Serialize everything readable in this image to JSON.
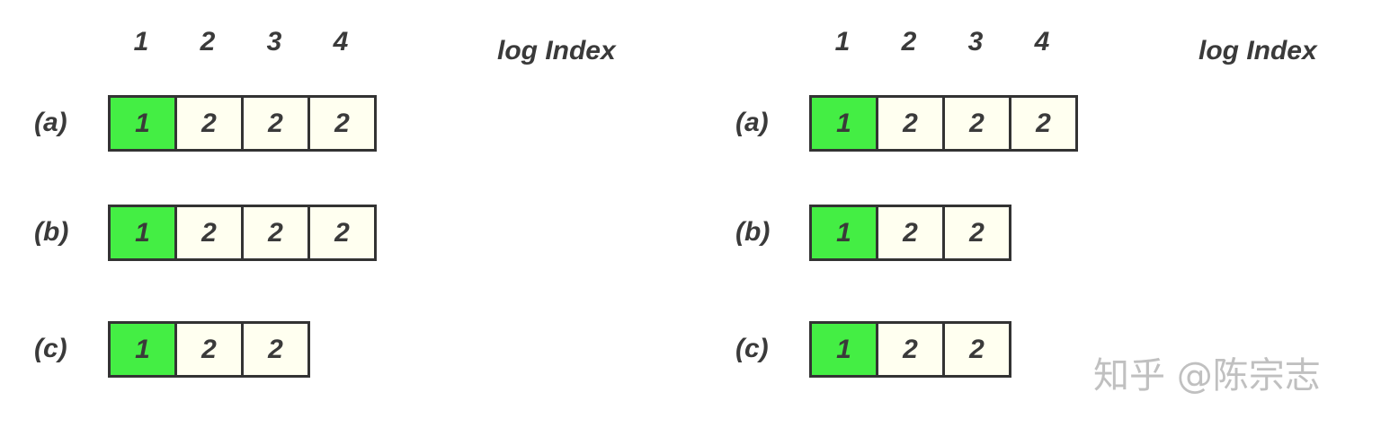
{
  "panels": [
    {
      "index_header": [
        "1",
        "2",
        "3",
        "4"
      ],
      "axis_title": "log Index",
      "rows": [
        {
          "label": "(a)",
          "cells": [
            "1",
            "2",
            "2",
            "2"
          ]
        },
        {
          "label": "(b)",
          "cells": [
            "1",
            "2",
            "2",
            "2"
          ]
        },
        {
          "label": "(c)",
          "cells": [
            "1",
            "2",
            "2"
          ]
        }
      ]
    },
    {
      "index_header": [
        "1",
        "2",
        "3",
        "4"
      ],
      "axis_title": "log Index",
      "rows": [
        {
          "label": "(a)",
          "cells": [
            "1",
            "2",
            "2",
            "2"
          ]
        },
        {
          "label": "(b)",
          "cells": [
            "1",
            "2",
            "2"
          ]
        },
        {
          "label": "(c)",
          "cells": [
            "1",
            "2",
            "2"
          ]
        }
      ]
    }
  ],
  "colors": {
    "highlight_cell": "#44ee44",
    "normal_cell": "#fffff0",
    "border": "#333333",
    "text": "#3a3a3a"
  },
  "watermark": "知乎 @陈宗志"
}
